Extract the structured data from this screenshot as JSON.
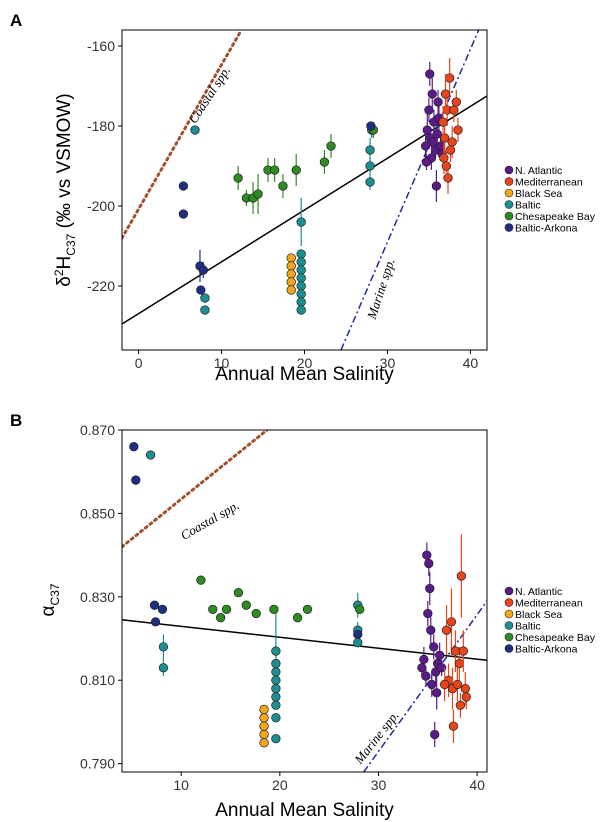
{
  "chart_data": [
    {
      "panel": "A",
      "type": "scatter",
      "xlabel": "Annual Mean Salinity",
      "ylabel": {
        "prefix": "δ",
        "sup": "2",
        "main": "H",
        "sub": "C37",
        "suffix": " (‰ vs VSMOW)"
      },
      "xlim": [
        -2,
        42
      ],
      "ylim": [
        -236,
        -156
      ],
      "xticks": [
        0,
        10,
        20,
        30,
        40
      ],
      "yticks": [
        -160,
        -180,
        -200,
        -220
      ],
      "legend": [
        "N. Atlantic",
        "Mediterranean",
        "Black Sea",
        "Baltic",
        "Chesapeake Bay",
        "Baltic-Arkona"
      ],
      "legend_position": "right",
      "lines": [
        {
          "label": "",
          "style": "solid",
          "color": "#000000",
          "x": [
            -2,
            42
          ],
          "y": [
            -229.5,
            -172.5
          ]
        },
        {
          "label": "Coastal spp.",
          "style": "dotted",
          "color": "#a0522d",
          "x": [
            -2,
            12.4
          ],
          "y": [
            -208,
            -156
          ]
        },
        {
          "label": "Marine spp.",
          "style": "dashdot",
          "color": "#1f2a9b",
          "x": [
            24.4,
            41
          ],
          "y": [
            -236,
            -156
          ]
        }
      ],
      "series": [
        {
          "name": "N. Atlantic",
          "color": "#5b1a8c",
          "points": [
            {
              "x": 34.6,
              "y": -185,
              "e": 3
            },
            {
              "x": 34.8,
              "y": -181,
              "e": 4
            },
            {
              "x": 35.0,
              "y": -176,
              "e": 3
            },
            {
              "x": 35.2,
              "y": -183,
              "e": 2
            },
            {
              "x": 35.4,
              "y": -172,
              "e": 4
            },
            {
              "x": 35.6,
              "y": -179,
              "e": 3
            },
            {
              "x": 35.8,
              "y": -186,
              "e": 2
            },
            {
              "x": 35.3,
              "y": -188,
              "e": 3
            },
            {
              "x": 35.9,
              "y": -195,
              "e": 4
            },
            {
              "x": 36.2,
              "y": -178,
              "e": 3
            },
            {
              "x": 34.7,
              "y": -189,
              "e": 2
            },
            {
              "x": 36.0,
              "y": -182,
              "e": 2
            },
            {
              "x": 36.4,
              "y": -185,
              "e": 3
            },
            {
              "x": 35.1,
              "y": -167,
              "e": 3
            },
            {
              "x": 35.5,
              "y": -184,
              "e": 2
            },
            {
              "x": 36.1,
              "y": -174,
              "e": 3
            },
            {
              "x": 36.6,
              "y": -187,
              "e": 2
            }
          ]
        },
        {
          "name": "Mediterranean",
          "color": "#e8451c",
          "points": [
            {
              "x": 37.5,
              "y": -168,
              "e": 5
            },
            {
              "x": 37.2,
              "y": -176,
              "e": 4
            },
            {
              "x": 36.9,
              "y": -183,
              "e": 5
            },
            {
              "x": 38.0,
              "y": -176,
              "e": 3
            },
            {
              "x": 37.8,
              "y": -184,
              "e": 4
            },
            {
              "x": 37.3,
              "y": -193,
              "e": 4
            },
            {
              "x": 38.5,
              "y": -181,
              "e": 3
            },
            {
              "x": 36.7,
              "y": -179,
              "e": 4
            },
            {
              "x": 37.6,
              "y": -186,
              "e": 3
            },
            {
              "x": 36.8,
              "y": -188,
              "e": 4
            },
            {
              "x": 38.3,
              "y": -174,
              "e": 3
            },
            {
              "x": 37.1,
              "y": -190,
              "e": 4
            },
            {
              "x": 37.0,
              "y": -172,
              "e": 5
            }
          ]
        },
        {
          "name": "Black Sea",
          "color": "#f2a71b",
          "points": [
            {
              "x": 18.4,
              "y": -213,
              "e": 1
            },
            {
              "x": 18.4,
              "y": -215,
              "e": 1
            },
            {
              "x": 18.4,
              "y": -217,
              "e": 1
            },
            {
              "x": 18.4,
              "y": -219,
              "e": 1
            },
            {
              "x": 18.4,
              "y": -221,
              "e": 1
            }
          ]
        },
        {
          "name": "Baltic",
          "color": "#1b9092",
          "points": [
            {
              "x": 6.8,
              "y": -181,
              "e": 1
            },
            {
              "x": 8.0,
              "y": -223,
              "e": 1
            },
            {
              "x": 8.0,
              "y": -226,
              "e": 1
            },
            {
              "x": 19.6,
              "y": -204,
              "e": 6
            },
            {
              "x": 19.6,
              "y": -212,
              "e": 1
            },
            {
              "x": 19.6,
              "y": -214,
              "e": 1
            },
            {
              "x": 19.6,
              "y": -216,
              "e": 1
            },
            {
              "x": 19.6,
              "y": -218,
              "e": 1
            },
            {
              "x": 19.6,
              "y": -220,
              "e": 1
            },
            {
              "x": 19.6,
              "y": -222,
              "e": 1
            },
            {
              "x": 19.6,
              "y": -224,
              "e": 1
            },
            {
              "x": 19.6,
              "y": -226,
              "e": 1
            },
            {
              "x": 27.9,
              "y": -186,
              "e": 3
            },
            {
              "x": 27.9,
              "y": -190,
              "e": 2
            },
            {
              "x": 27.9,
              "y": -194,
              "e": 2
            },
            {
              "x": 28.1,
              "y": -181,
              "e": 2
            }
          ]
        },
        {
          "name": "Chesapeake Bay",
          "color": "#2e8b22",
          "points": [
            {
              "x": 12.0,
              "y": -193,
              "e": 3
            },
            {
              "x": 13.0,
              "y": -198,
              "e": 2
            },
            {
              "x": 13.8,
              "y": -198,
              "e": 4
            },
            {
              "x": 14.4,
              "y": -197,
              "e": 5
            },
            {
              "x": 15.6,
              "y": -191,
              "e": 3
            },
            {
              "x": 16.4,
              "y": -191,
              "e": 3
            },
            {
              "x": 17.4,
              "y": -195,
              "e": 3
            },
            {
              "x": 19.0,
              "y": -191,
              "e": 4
            },
            {
              "x": 22.4,
              "y": -189,
              "e": 3
            },
            {
              "x": 23.2,
              "y": -185,
              "e": 3
            },
            {
              "x": 28.3,
              "y": -181,
              "e": 2
            }
          ]
        },
        {
          "name": "Baltic-Arkona",
          "color": "#1d2f84",
          "points": [
            {
              "x": 5.4,
              "y": -195,
              "e": 1
            },
            {
              "x": 5.4,
              "y": -202,
              "e": 1
            },
            {
              "x": 7.4,
              "y": -215,
              "e": 4
            },
            {
              "x": 7.8,
              "y": -216,
              "e": 2
            },
            {
              "x": 7.5,
              "y": -221,
              "e": 1
            },
            {
              "x": 28.0,
              "y": -180,
              "e": 1
            }
          ]
        }
      ]
    },
    {
      "panel": "B",
      "type": "scatter",
      "xlabel": "Annual Mean Salinity",
      "ylabel": {
        "main": "α",
        "sub": "C37"
      },
      "xlim": [
        4,
        41
      ],
      "ylim": [
        0.788,
        0.87
      ],
      "xticks": [
        10,
        20,
        30,
        40
      ],
      "yticks": [
        0.87,
        0.85,
        0.83,
        0.81,
        0.79
      ],
      "ytick_labels": [
        "0.870",
        "0.850",
        "0.830",
        "0.810",
        "0.790"
      ],
      "legend": [
        "N. Atlantic",
        "Mediterranean",
        "Black Sea",
        "Baltic",
        "Chesapeake Bay",
        "Baltic-Arkona"
      ],
      "legend_position": "right",
      "lines": [
        {
          "label": "",
          "style": "solid",
          "color": "#000000",
          "x": [
            4,
            41
          ],
          "y": [
            0.8245,
            0.8148
          ]
        },
        {
          "label": "Coastal spp.",
          "style": "dotted",
          "color": "#a0522d",
          "x": [
            4,
            18.7
          ],
          "y": [
            0.842,
            0.87
          ]
        },
        {
          "label": "Marine spp.",
          "style": "dashdot",
          "color": "#1f2a9b",
          "x": [
            28.5,
            41
          ],
          "y": [
            0.788,
            0.829
          ]
        }
      ],
      "series": [
        {
          "name": "N. Atlantic",
          "color": "#5b1a8c",
          "points": [
            {
              "x": 34.9,
              "y": 0.84,
              "e": 0.003
            },
            {
              "x": 35.1,
              "y": 0.838,
              "e": 0.003
            },
            {
              "x": 35.2,
              "y": 0.832,
              "e": 0.004
            },
            {
              "x": 35.0,
              "y": 0.826,
              "e": 0.003
            },
            {
              "x": 35.3,
              "y": 0.822,
              "e": 0.004
            },
            {
              "x": 34.6,
              "y": 0.815,
              "e": 0.003
            },
            {
              "x": 35.6,
              "y": 0.818,
              "e": 0.003
            },
            {
              "x": 35.8,
              "y": 0.812,
              "e": 0.003
            },
            {
              "x": 34.4,
              "y": 0.813,
              "e": 0.002
            },
            {
              "x": 35.4,
              "y": 0.809,
              "e": 0.003
            },
            {
              "x": 36.0,
              "y": 0.814,
              "e": 0.002
            },
            {
              "x": 35.7,
              "y": 0.797,
              "e": 0.003
            },
            {
              "x": 36.2,
              "y": 0.816,
              "e": 0.003
            },
            {
              "x": 35.9,
              "y": 0.807,
              "e": 0.004
            },
            {
              "x": 34.8,
              "y": 0.811,
              "e": 0.002
            },
            {
              "x": 36.4,
              "y": 0.813,
              "e": 0.002
            }
          ]
        },
        {
          "name": "Mediterranean",
          "color": "#e8451c",
          "points": [
            {
              "x": 38.4,
              "y": 0.835,
              "e": 0.01
            },
            {
              "x": 37.4,
              "y": 0.824,
              "e": 0.008
            },
            {
              "x": 36.9,
              "y": 0.822,
              "e": 0.006
            },
            {
              "x": 37.8,
              "y": 0.817,
              "e": 0.005
            },
            {
              "x": 38.2,
              "y": 0.814,
              "e": 0.004
            },
            {
              "x": 38.6,
              "y": 0.817,
              "e": 0.005
            },
            {
              "x": 37.1,
              "y": 0.81,
              "e": 0.004
            },
            {
              "x": 37.5,
              "y": 0.808,
              "e": 0.005
            },
            {
              "x": 38.0,
              "y": 0.809,
              "e": 0.004
            },
            {
              "x": 38.8,
              "y": 0.808,
              "e": 0.004
            },
            {
              "x": 37.6,
              "y": 0.799,
              "e": 0.004
            },
            {
              "x": 38.9,
              "y": 0.806,
              "e": 0.003
            },
            {
              "x": 36.7,
              "y": 0.809,
              "e": 0.004
            },
            {
              "x": 38.3,
              "y": 0.804,
              "e": 0.003
            }
          ]
        },
        {
          "name": "Black Sea",
          "color": "#f2a71b",
          "points": [
            {
              "x": 18.4,
              "y": 0.795,
              "e": 0.001
            },
            {
              "x": 18.4,
              "y": 0.797,
              "e": 0.001
            },
            {
              "x": 18.4,
              "y": 0.799,
              "e": 0.001
            },
            {
              "x": 18.4,
              "y": 0.801,
              "e": 0.001
            },
            {
              "x": 18.4,
              "y": 0.803,
              "e": 0.001
            }
          ]
        },
        {
          "name": "Baltic",
          "color": "#1b9092",
          "points": [
            {
              "x": 6.9,
              "y": 0.864,
              "e": 0.001
            },
            {
              "x": 8.2,
              "y": 0.818,
              "e": 0.003
            },
            {
              "x": 8.2,
              "y": 0.813,
              "e": 0.002
            },
            {
              "x": 19.6,
              "y": 0.817,
              "e": 0.01
            },
            {
              "x": 19.6,
              "y": 0.814,
              "e": 0.001
            },
            {
              "x": 19.6,
              "y": 0.812,
              "e": 0.001
            },
            {
              "x": 19.6,
              "y": 0.81,
              "e": 0.001
            },
            {
              "x": 19.6,
              "y": 0.808,
              "e": 0.001
            },
            {
              "x": 19.6,
              "y": 0.806,
              "e": 0.001
            },
            {
              "x": 19.6,
              "y": 0.804,
              "e": 0.001
            },
            {
              "x": 19.6,
              "y": 0.801,
              "e": 0.001
            },
            {
              "x": 19.6,
              "y": 0.796,
              "e": 0.001
            },
            {
              "x": 27.9,
              "y": 0.828,
              "e": 0.003
            },
            {
              "x": 27.9,
              "y": 0.822,
              "e": 0.002
            },
            {
              "x": 27.9,
              "y": 0.819,
              "e": 0.001
            }
          ]
        },
        {
          "name": "Chesapeake Bay",
          "color": "#2e8b22",
          "points": [
            {
              "x": 12.0,
              "y": 0.834,
              "e": 0.001
            },
            {
              "x": 13.2,
              "y": 0.827,
              "e": 0.001
            },
            {
              "x": 14.0,
              "y": 0.825,
              "e": 0.001
            },
            {
              "x": 14.6,
              "y": 0.827,
              "e": 0.001
            },
            {
              "x": 15.8,
              "y": 0.831,
              "e": 0.001
            },
            {
              "x": 16.6,
              "y": 0.828,
              "e": 0.001
            },
            {
              "x": 17.6,
              "y": 0.826,
              "e": 0.001
            },
            {
              "x": 19.4,
              "y": 0.827,
              "e": 0.001
            },
            {
              "x": 21.8,
              "y": 0.825,
              "e": 0.001
            },
            {
              "x": 22.8,
              "y": 0.827,
              "e": 0.001
            },
            {
              "x": 28.1,
              "y": 0.827,
              "e": 0.001
            }
          ]
        },
        {
          "name": "Baltic-Arkona",
          "color": "#1d2f84",
          "points": [
            {
              "x": 5.2,
              "y": 0.866,
              "e": 0.001
            },
            {
              "x": 5.4,
              "y": 0.858,
              "e": 0.001
            },
            {
              "x": 7.3,
              "y": 0.828,
              "e": 0.001
            },
            {
              "x": 7.4,
              "y": 0.824,
              "e": 0.001
            },
            {
              "x": 8.1,
              "y": 0.827,
              "e": 0.001
            },
            {
              "x": 27.9,
              "y": 0.821,
              "e": 0.001
            }
          ]
        }
      ]
    }
  ]
}
